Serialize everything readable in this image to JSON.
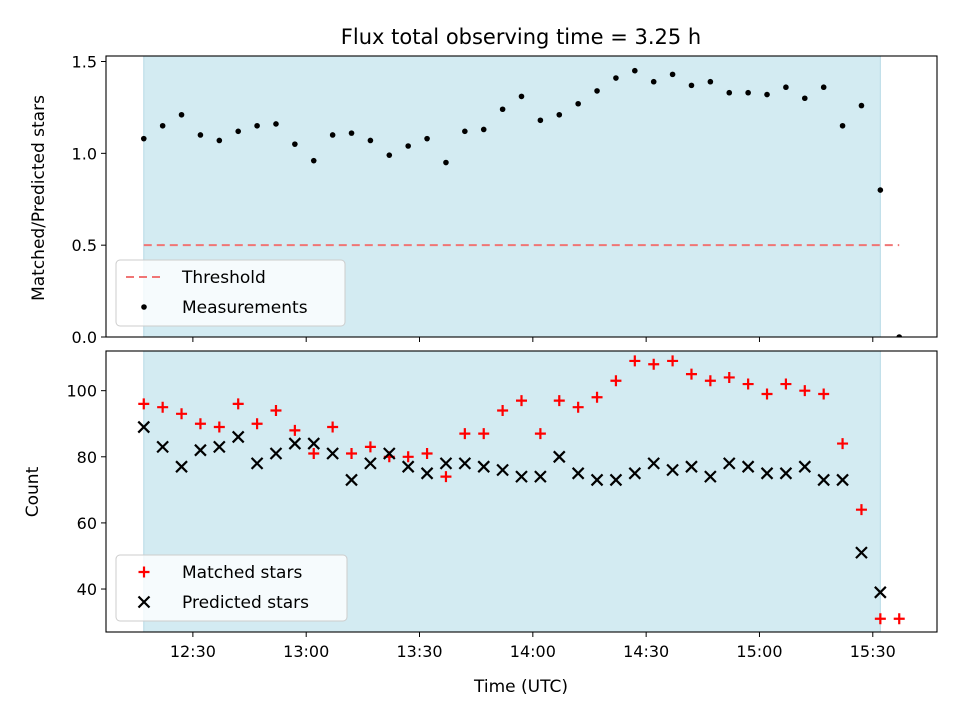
{
  "chart_data": [
    {
      "type": "scatter",
      "title": "Flux total observing time = 3.25 h",
      "xlabel": "",
      "ylabel": "Matched/Predicted stars",
      "ylim": [
        0,
        1.53
      ],
      "yticks": [
        0.0,
        0.5,
        1.0,
        1.5
      ],
      "ytick_labels": [
        "0.0",
        "0.5",
        "1.0",
        "1.5"
      ],
      "shaded_interval": {
        "start": "12:17",
        "end": "15:32",
        "color": "#d3ebf2"
      },
      "threshold": {
        "name": "Threshold",
        "value": 0.5,
        "x_start": "12:17",
        "x_end": "15:37",
        "color": "#f07575"
      },
      "legend_placement": "lower-left",
      "series": [
        {
          "name": "Measurements",
          "marker": "dot",
          "color": "#000000",
          "x": [
            "12:17",
            "12:22",
            "12:27",
            "12:32",
            "12:37",
            "12:42",
            "12:47",
            "12:52",
            "12:57",
            "13:02",
            "13:07",
            "13:12",
            "13:17",
            "13:22",
            "13:27",
            "13:32",
            "13:37",
            "13:42",
            "13:47",
            "13:52",
            "13:57",
            "14:02",
            "14:07",
            "14:12",
            "14:17",
            "14:22",
            "14:27",
            "14:32",
            "14:37",
            "14:42",
            "14:47",
            "14:52",
            "14:57",
            "15:02",
            "15:07",
            "15:12",
            "15:17",
            "15:22",
            "15:27",
            "15:32",
            "15:37"
          ],
          "y": [
            1.08,
            1.15,
            1.21,
            1.1,
            1.07,
            1.12,
            1.15,
            1.16,
            1.05,
            0.96,
            1.1,
            1.11,
            1.07,
            0.99,
            1.04,
            1.08,
            0.95,
            1.12,
            1.13,
            1.24,
            1.31,
            1.18,
            1.21,
            1.27,
            1.34,
            1.41,
            1.45,
            1.39,
            1.43,
            1.37,
            1.39,
            1.33,
            1.33,
            1.32,
            1.36,
            1.3,
            1.36,
            1.15,
            1.26,
            0.8,
            0.0
          ]
        }
      ]
    },
    {
      "type": "scatter",
      "title": "",
      "xlabel": "Time (UTC)",
      "ylabel": "Count",
      "ylim": [
        27,
        112
      ],
      "yticks": [
        40,
        60,
        80,
        100
      ],
      "ytick_labels": [
        "40",
        "60",
        "80",
        "100"
      ],
      "xlim": [
        "12:07",
        "15:47"
      ],
      "xticks": [
        "12:30",
        "13:00",
        "13:30",
        "14:00",
        "14:30",
        "15:00",
        "15:30"
      ],
      "xtick_labels": [
        "12:30",
        "13:00",
        "13:30",
        "14:00",
        "14:30",
        "15:00",
        "15:30"
      ],
      "shaded_interval": {
        "start": "12:17",
        "end": "15:32",
        "color": "#d3ebf2"
      },
      "legend_placement": "lower-left",
      "series": [
        {
          "name": "Matched stars",
          "marker": "plus",
          "color": "#ff0000",
          "x": [
            "12:17",
            "12:22",
            "12:27",
            "12:32",
            "12:37",
            "12:42",
            "12:47",
            "12:52",
            "12:57",
            "13:02",
            "13:07",
            "13:12",
            "13:17",
            "13:22",
            "13:27",
            "13:32",
            "13:37",
            "13:42",
            "13:47",
            "13:52",
            "13:57",
            "14:02",
            "14:07",
            "14:12",
            "14:17",
            "14:22",
            "14:27",
            "14:32",
            "14:37",
            "14:42",
            "14:47",
            "14:52",
            "14:57",
            "15:02",
            "15:07",
            "15:12",
            "15:17",
            "15:22",
            "15:27",
            "15:32",
            "15:37"
          ],
          "y": [
            96,
            95,
            93,
            90,
            89,
            96,
            90,
            94,
            88,
            81,
            89,
            81,
            83,
            80,
            80,
            81,
            74,
            87,
            87,
            94,
            97,
            87,
            97,
            95,
            98,
            103,
            109,
            108,
            109,
            105,
            103,
            104,
            102,
            99,
            102,
            100,
            99,
            84,
            64,
            31,
            31
          ]
        },
        {
          "name": "Predicted stars",
          "marker": "x",
          "color": "#000000",
          "x": [
            "12:17",
            "12:22",
            "12:27",
            "12:32",
            "12:37",
            "12:42",
            "12:47",
            "12:52",
            "12:57",
            "13:02",
            "13:07",
            "13:12",
            "13:17",
            "13:22",
            "13:27",
            "13:32",
            "13:37",
            "13:42",
            "13:47",
            "13:52",
            "13:57",
            "14:02",
            "14:07",
            "14:12",
            "14:17",
            "14:22",
            "14:27",
            "14:32",
            "14:37",
            "14:42",
            "14:47",
            "14:52",
            "14:57",
            "15:02",
            "15:07",
            "15:12",
            "15:17",
            "15:22",
            "15:27",
            "15:32"
          ],
          "y": [
            89,
            83,
            77,
            82,
            83,
            86,
            78,
            81,
            84,
            84,
            81,
            73,
            78,
            81,
            77,
            75,
            78,
            78,
            77,
            76,
            74,
            74,
            80,
            75,
            73,
            73,
            75,
            78,
            76,
            77,
            74,
            78,
            77,
            75,
            75,
            77,
            73,
            73,
            51,
            39
          ]
        }
      ]
    }
  ]
}
